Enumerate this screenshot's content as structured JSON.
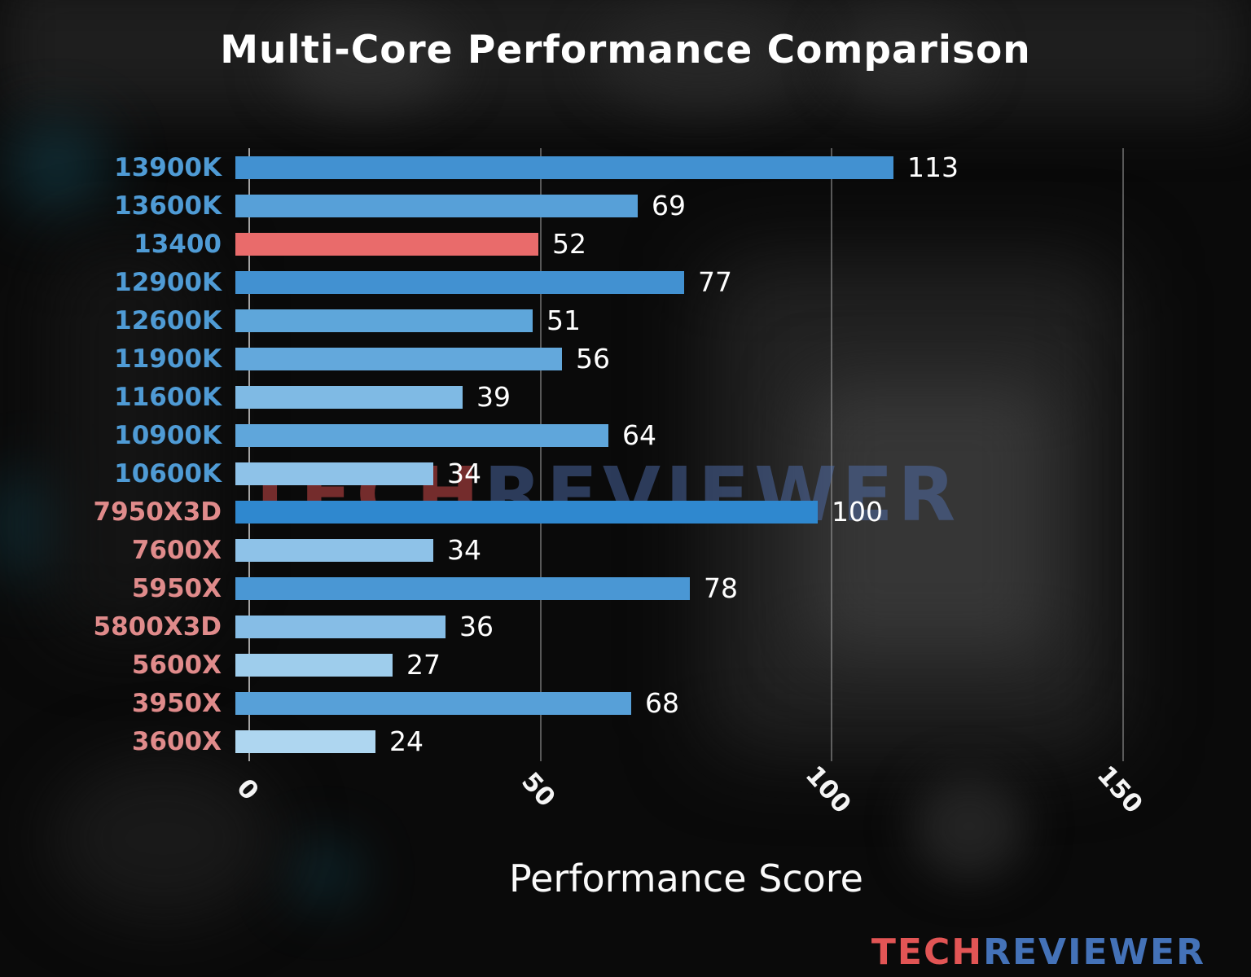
{
  "title": "Multi-Core Performance Comparison",
  "xlabel": "Performance Score",
  "watermark": {
    "tech": "TECH",
    "reviewer": "REVIEWER"
  },
  "logo": {
    "tech": "TECH",
    "reviewer": "REVIEWER"
  },
  "colors": {
    "intel_label": "#4f9bd5",
    "amd_label": "#e08b8b",
    "highlight_bar": "#e96b6b",
    "value_text": "#ffffff",
    "grid": "#a8a8a8"
  },
  "chart_data": {
    "type": "bar",
    "orientation": "horizontal",
    "title": "Multi-Core Performance Comparison",
    "xlabel": "Performance Score",
    "ylabel": "",
    "xlim": [
      0,
      166
    ],
    "xticks": [
      0,
      50,
      100,
      150
    ],
    "grid": true,
    "legend": false,
    "highlight_category": "13400",
    "categories": [
      "13900K",
      "13600K",
      "13400",
      "12900K",
      "12600K",
      "11900K",
      "11600K",
      "10900K",
      "10600K",
      "7950X3D",
      "7600X",
      "5950X",
      "5800X3D",
      "5600X",
      "3950X",
      "3600X"
    ],
    "values": [
      113,
      69,
      52,
      77,
      51,
      56,
      39,
      64,
      34,
      100,
      34,
      78,
      36,
      27,
      68,
      24
    ],
    "bar_colors": [
      "#4291d1",
      "#57a0d8",
      "#e96b6b",
      "#4291d1",
      "#5ea6da",
      "#63a8dc",
      "#7fbae4",
      "#5fa6db",
      "#8ec2e8",
      "#2f88cf",
      "#8ec2e8",
      "#4a97d4",
      "#86bde6",
      "#9ecdec",
      "#57a0d8",
      "#aed6f0"
    ],
    "label_colors": [
      "#4f9bd5",
      "#4f9bd5",
      "#4f9bd5",
      "#4f9bd5",
      "#4f9bd5",
      "#4f9bd5",
      "#4f9bd5",
      "#4f9bd5",
      "#4f9bd5",
      "#e08b8b",
      "#e08b8b",
      "#e08b8b",
      "#e08b8b",
      "#e08b8b",
      "#e08b8b",
      "#e08b8b"
    ]
  }
}
